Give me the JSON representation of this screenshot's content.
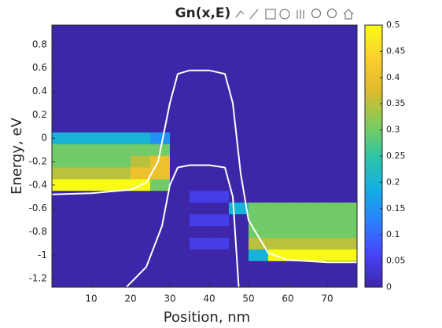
{
  "chart_data": {
    "type": "heatmap",
    "title": "Gn(x,E)",
    "x_label": "Position, nm",
    "y_label": "Energy, eV",
    "xlim": [
      0,
      77.6
    ],
    "ylim": [
      -1.273,
      0.967
    ],
    "xticks": [
      10,
      20,
      30,
      40,
      50,
      60,
      70
    ],
    "yticks": [
      -1.2,
      -1,
      -0.8,
      -0.6,
      -0.4,
      -0.2,
      0,
      0.2,
      0.4,
      0.6,
      0.8
    ],
    "clim": [
      0,
      0.5
    ],
    "cticks": [
      0,
      0.05,
      0.1,
      0.15,
      0.2,
      0.25,
      0.3,
      0.35,
      0.4,
      0.45,
      0.5
    ],
    "colormap": [
      "#3e26a8",
      "#4743f8",
      "#2b80fe",
      "#13aee3",
      "#2ec5a5",
      "#81cc59",
      "#dfba2d",
      "#fcce2e",
      "#f9fb15"
    ],
    "x": [
      2.5,
      7.5,
      12.5,
      17.5,
      22.5,
      27.5,
      32.5,
      37.5,
      42.5,
      47.5,
      52.5,
      57.5,
      62.5,
      67.5,
      72.5,
      77.5
    ],
    "y": [
      0.9,
      0.8,
      0.7,
      0.6,
      0.5,
      0.4,
      0.3,
      0.2,
      0.1,
      0,
      -0.1,
      -0.2,
      -0.3,
      -0.4,
      -0.5,
      -0.6,
      -0.7,
      -0.8,
      -0.9,
      -1,
      -1.1,
      -1.2
    ],
    "z": [
      [
        0,
        0,
        0,
        0,
        0,
        0,
        0,
        0,
        0,
        0,
        0,
        0,
        0,
        0,
        0,
        0
      ],
      [
        0,
        0,
        0,
        0,
        0,
        0,
        0,
        0,
        0,
        0,
        0,
        0,
        0,
        0,
        0,
        0
      ],
      [
        0,
        0,
        0,
        0,
        0,
        0,
        0,
        0,
        0,
        0,
        0,
        0,
        0,
        0,
        0,
        0
      ],
      [
        0,
        0,
        0,
        0,
        0,
        0,
        0,
        0,
        0,
        0,
        0,
        0,
        0,
        0,
        0,
        0
      ],
      [
        0,
        0,
        0,
        0,
        0,
        0,
        0,
        0,
        0,
        0,
        0,
        0,
        0,
        0,
        0,
        0
      ],
      [
        0,
        0,
        0,
        0,
        0,
        0,
        0,
        0,
        0,
        0,
        0,
        0,
        0,
        0,
        0,
        0
      ],
      [
        0,
        0,
        0,
        0,
        0,
        0,
        0,
        0,
        0,
        0,
        0,
        0,
        0,
        0,
        0,
        0
      ],
      [
        0,
        0,
        0,
        0,
        0,
        0,
        0,
        0,
        0,
        0,
        0,
        0,
        0,
        0,
        0,
        0
      ],
      [
        0,
        0,
        0,
        0,
        0,
        0,
        0,
        0,
        0,
        0,
        0,
        0,
        0,
        0,
        0,
        0
      ],
      [
        0.2,
        0.2,
        0.2,
        0.2,
        0.2,
        0.15,
        0,
        0,
        0,
        0,
        0,
        0,
        0,
        0,
        0,
        0
      ],
      [
        0.3,
        0.3,
        0.3,
        0.3,
        0.3,
        0.3,
        0,
        0,
        0,
        0,
        0,
        0,
        0,
        0,
        0,
        0
      ],
      [
        0.3,
        0.3,
        0.3,
        0.3,
        0.35,
        0.4,
        0,
        0,
        0,
        0,
        0,
        0,
        0,
        0,
        0,
        0
      ],
      [
        0.35,
        0.35,
        0.35,
        0.35,
        0.4,
        0.4,
        0,
        0,
        0,
        0,
        0,
        0,
        0,
        0,
        0,
        0
      ],
      [
        0.5,
        0.5,
        0.5,
        0.5,
        0.5,
        0.3,
        0,
        0,
        0,
        0,
        0,
        0,
        0,
        0,
        0,
        0
      ],
      [
        0,
        0,
        0,
        0,
        0,
        0,
        0,
        0.05,
        0.05,
        0,
        0,
        0,
        0,
        0,
        0,
        0
      ],
      [
        0,
        0,
        0,
        0,
        0,
        0,
        0,
        0,
        0,
        0.2,
        0.3,
        0.3,
        0.3,
        0.3,
        0.3,
        0.3
      ],
      [
        0,
        0,
        0,
        0,
        0,
        0,
        0,
        0.05,
        0.05,
        0,
        0.3,
        0.3,
        0.3,
        0.3,
        0.3,
        0.3
      ],
      [
        0,
        0,
        0,
        0,
        0,
        0,
        0,
        0,
        0,
        0,
        0.3,
        0.3,
        0.3,
        0.3,
        0.3,
        0.3
      ],
      [
        0,
        0,
        0,
        0,
        0,
        0,
        0,
        0.05,
        0.05,
        0,
        0.35,
        0.35,
        0.35,
        0.35,
        0.35,
        0.35
      ],
      [
        0,
        0,
        0,
        0,
        0,
        0,
        0,
        0,
        0,
        0,
        0.2,
        0.5,
        0.5,
        0.5,
        0.5,
        0.5
      ],
      [
        0,
        0,
        0,
        0,
        0,
        0,
        0,
        0,
        0,
        0,
        0,
        0,
        0,
        0,
        0,
        0
      ],
      [
        0,
        0,
        0,
        0,
        0,
        0,
        0,
        0,
        0,
        0,
        0,
        0,
        0,
        0,
        0,
        0
      ]
    ],
    "series": [
      {
        "color": "#ffffff",
        "x": [
          0,
          10,
          20,
          24,
          27,
          30,
          32,
          35,
          40,
          44,
          46,
          48,
          50,
          55,
          60,
          70,
          77.6
        ],
        "values": [
          -0.48,
          -0.47,
          -0.44,
          -0.38,
          -0.2,
          0.3,
          0.55,
          0.58,
          0.58,
          0.55,
          0.3,
          -0.3,
          -0.7,
          -0.98,
          -1.04,
          -1.06,
          -1.06
        ]
      },
      {
        "color": "#ffffff",
        "x": [
          19,
          24,
          28,
          30,
          32,
          35,
          40,
          44,
          46,
          47.5
        ],
        "values": [
          -1.27,
          -1.1,
          -0.75,
          -0.4,
          -0.25,
          -0.23,
          -0.23,
          -0.25,
          -0.5,
          -1.27
        ]
      }
    ]
  }
}
